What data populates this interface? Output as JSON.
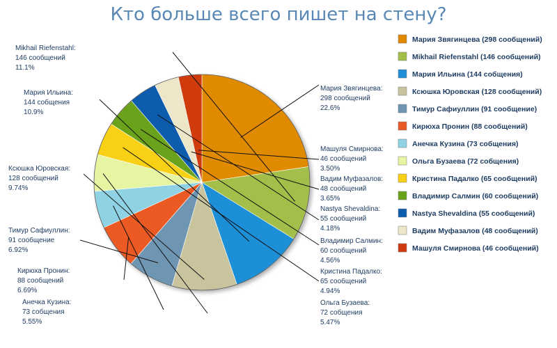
{
  "chart_data": {
    "type": "pie",
    "title": "Кто больше всего пишет на стену?",
    "legend_position": "right",
    "slices": [
      {
        "name": "Мария Звягинцева",
        "value": 298,
        "unit": "сообщений",
        "percent": "22.6%",
        "legend": "Мария Звягинцева (298 сообщений)",
        "color": "#e08a00"
      },
      {
        "name": "Mikhail Riefenstahl",
        "value": 146,
        "unit": "сообщений",
        "percent": "11.1%",
        "legend": "Mikhail Riefenstahl (146 сообщений)",
        "color": "#a3bf4a"
      },
      {
        "name": "Мария Ильина",
        "value": 144,
        "unit": "собщения",
        "percent": "10.9%",
        "legend": "Мария Ильина (144 собщения)",
        "color": "#1e8fd6"
      },
      {
        "name": "Ксюшка Юровская",
        "value": 128,
        "unit": "сообщений",
        "percent": "9.74%",
        "legend": "Ксюшка Юровская (128 сообщений)",
        "color": "#c9c49e"
      },
      {
        "name": "Тимур Сафиуллин",
        "value": 91,
        "unit": "сообщение",
        "percent": "6.92%",
        "legend": "Тимур Сафиуллин (91 сообщение)",
        "color": "#6e95b2"
      },
      {
        "name": "Кирюха Пронин",
        "value": 88,
        "unit": "сообщений",
        "percent": "6.69%",
        "legend": "Кирюха Пронин (88 сообщений)",
        "color": "#ea5a24"
      },
      {
        "name": "Анечка Кузина",
        "value": 73,
        "unit": "собщения",
        "percent": "5.55%",
        "legend": "Анечка Кузина (73 собщения)",
        "color": "#8fd2e3"
      },
      {
        "name": "Ольга Бузаева",
        "value": 72,
        "unit": "собщения",
        "percent": "5.47%",
        "legend": "Ольга Бузаева (72 собщения)",
        "color": "#e5f5a2"
      },
      {
        "name": "Кристина Падалко",
        "value": 65,
        "unit": "сообщений",
        "percent": "4.94%",
        "legend": "Кристина Падалко (65 сообщений)",
        "color": "#f8d014"
      },
      {
        "name": "Владимир Салмин",
        "value": 60,
        "unit": "сообщений",
        "percent": "4.56%",
        "legend": "Владимир Салмин (60 сообщений)",
        "color": "#6aa21a"
      },
      {
        "name": "Nastya Shevaldina",
        "value": 55,
        "unit": "сообщений",
        "percent": "4.18%",
        "legend": "Nastya Shevaldina (55 сообщений)",
        "color": "#0b5cad"
      },
      {
        "name": "Вадим Муфазалов",
        "value": 48,
        "unit": "сообщений",
        "percent": "3.65%",
        "legend": "Вадим Муфазалов (48 сообщений)",
        "color": "#ede6c8"
      },
      {
        "name": "Машуля Смирнова",
        "value": 46,
        "unit": "сообщений",
        "percent": "3.50%",
        "legend": "Машуля Смирнова (46 сообщений)",
        "color": "#cf3a10"
      }
    ]
  }
}
